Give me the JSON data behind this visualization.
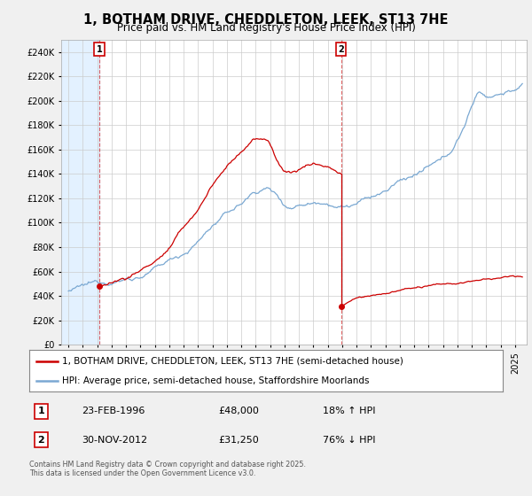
{
  "title": "1, BOTHAM DRIVE, CHEDDLETON, LEEK, ST13 7HE",
  "subtitle": "Price paid vs. HM Land Registry's House Price Index (HPI)",
  "ylim": [
    0,
    250000
  ],
  "yticks": [
    0,
    20000,
    40000,
    60000,
    80000,
    100000,
    120000,
    140000,
    160000,
    180000,
    200000,
    220000,
    240000
  ],
  "transaction1": {
    "date": "23-FEB-1996",
    "price": 48000,
    "label": "1",
    "hpi_relation": "18% ↑ HPI",
    "year": 1996.15
  },
  "transaction2": {
    "date": "30-NOV-2012",
    "price": 31250,
    "label": "2",
    "hpi_relation": "76% ↓ HPI",
    "year": 2012.92
  },
  "legend_line1": "1, BOTHAM DRIVE, CHEDDLETON, LEEK, ST13 7HE (semi-detached house)",
  "legend_line2": "HPI: Average price, semi-detached house, Staffordshire Moorlands",
  "footer": "Contains HM Land Registry data © Crown copyright and database right 2025.\nThis data is licensed under the Open Government Licence v3.0.",
  "line_color_property": "#cc0000",
  "line_color_hpi": "#7aa8d2",
  "background_color": "#f0f0f0",
  "plot_bg_color": "#ffffff",
  "hatch_color": "#ddeeff",
  "grid_color": "#cccccc",
  "title_fontsize": 10.5,
  "subtitle_fontsize": 8.5,
  "tick_fontsize": 7,
  "legend_fontsize": 7.5,
  "info_fontsize": 8
}
